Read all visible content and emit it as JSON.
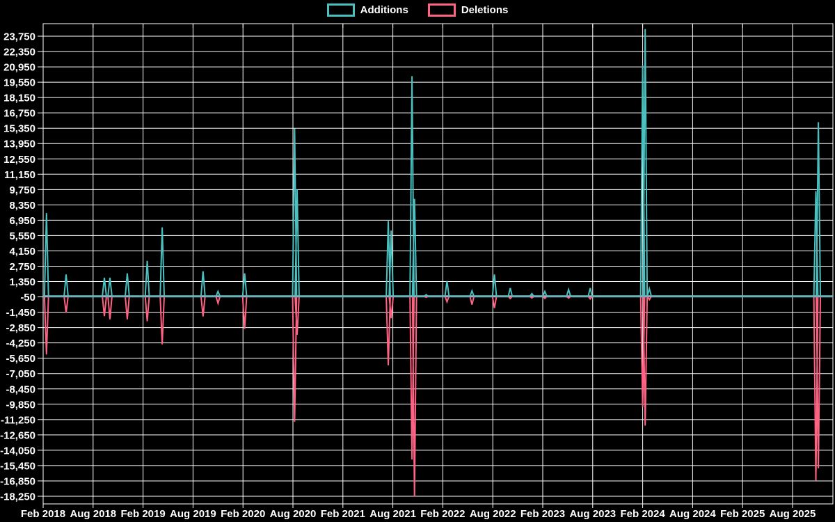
{
  "colors": {
    "background": "#000000",
    "grid": "#ffffff",
    "text": "#ffffff",
    "zero_line": "#9FB4C7",
    "additions": "#4BC0C0",
    "deletions": "#FF6384"
  },
  "legend": {
    "items": [
      {
        "label": "Additions",
        "color": "#4BC0C0"
      },
      {
        "label": "Deletions",
        "color": "#FF6384"
      }
    ]
  },
  "chart_data": {
    "type": "line",
    "title": "",
    "subtitle": "",
    "legend_position": "top",
    "grid": true,
    "background": "#000000",
    "x_axis": {
      "start": "Feb 2018",
      "end": "Aug 2025",
      "granularity": "weekly points, gridline every 6 months",
      "tick_labels": [
        "Feb 2018",
        "Aug 2018",
        "Feb 2019",
        "Aug 2019",
        "Feb 2020",
        "Aug 2020",
        "Feb 2021",
        "Aug 2021",
        "Feb 2022",
        "Aug 2022",
        "Feb 2023",
        "Aug 2023",
        "Feb 2024",
        "Aug 2024",
        "Feb 2025",
        "Aug 2025"
      ]
    },
    "y_axis": {
      "min": -18250,
      "max": 23750,
      "step": 1400,
      "tick_labels": [
        "23,750",
        "22,350",
        "20,950",
        "19,550",
        "18,150",
        "16,750",
        "15,350",
        "13,950",
        "12,550",
        "11,150",
        "9,750",
        "8,350",
        "6,950",
        "5,550",
        "4,150",
        "2,750",
        "1,350",
        "-50",
        "-1,450",
        "-2,850",
        "-4,250",
        "-5,650",
        "-7,050",
        "-8,450",
        "-9,850",
        "-11,250",
        "-12,650",
        "-14,050",
        "-15,450",
        "-16,850",
        "-18,250"
      ]
    },
    "baseline_value": 0,
    "series_names": [
      "Additions",
      "Deletions"
    ],
    "points_note": "spike events; all other weeks are 0 for both series; t = months after Feb 2018",
    "points": [
      {
        "date": "2018-02",
        "t": 0.4,
        "additions": 7600,
        "deletions": -5300
      },
      {
        "date": "2018-04",
        "t": 2.76,
        "additions": 2000,
        "deletions": -1500
      },
      {
        "date": "2018-09",
        "t": 7.35,
        "additions": 1700,
        "deletions": -1800
      },
      {
        "date": "2018-10",
        "t": 8.02,
        "additions": 1700,
        "deletions": -2100
      },
      {
        "date": "2018-12",
        "t": 10.1,
        "additions": 2100,
        "deletions": -2100
      },
      {
        "date": "2019-02",
        "t": 12.5,
        "additions": 3240,
        "deletions": -2270
      },
      {
        "date": "2019-04",
        "t": 14.3,
        "additions": 6300,
        "deletions": -4380
      },
      {
        "date": "2019-09",
        "t": 19.2,
        "additions": 2290,
        "deletions": -1840
      },
      {
        "date": "2019-11",
        "t": 21.0,
        "additions": 450,
        "deletions": -630
      },
      {
        "date": "2020-02",
        "t": 24.2,
        "additions": 2100,
        "deletions": -2960
      },
      {
        "date": "2020-08",
        "t": 30.2,
        "additions": 15330,
        "deletions": -11440
      },
      {
        "date": "2020-08",
        "t": 30.5,
        "additions": 9750,
        "deletions": -3500
      },
      {
        "date": "2021-07",
        "t": 41.45,
        "additions": 6880,
        "deletions": -6290
      },
      {
        "date": "2021-08",
        "t": 41.8,
        "additions": 6000,
        "deletions": -2000
      },
      {
        "date": "2021-10",
        "t": 44.3,
        "additions": 20100,
        "deletions": -14900
      },
      {
        "date": "2021-11",
        "t": 44.6,
        "additions": 8900,
        "deletions": -18300
      },
      {
        "date": "2021-12",
        "t": 46.0,
        "additions": 150,
        "deletions": -80
      },
      {
        "date": "2022-02",
        "t": 48.5,
        "additions": 1400,
        "deletions": -500
      },
      {
        "date": "2022-05",
        "t": 51.5,
        "additions": 500,
        "deletions": -760
      },
      {
        "date": "2022-08",
        "t": 54.2,
        "additions": 2000,
        "deletions": -1070
      },
      {
        "date": "2022-10",
        "t": 56.1,
        "additions": 760,
        "deletions": -200
      },
      {
        "date": "2022-12",
        "t": 58.7,
        "additions": 250,
        "deletions": -150
      },
      {
        "date": "2023-02",
        "t": 60.25,
        "additions": 440,
        "deletions": -190
      },
      {
        "date": "2023-05",
        "t": 63.1,
        "additions": 630,
        "deletions": -160
      },
      {
        "date": "2023-07",
        "t": 65.7,
        "additions": 760,
        "deletions": -230
      },
      {
        "date": "2024-01",
        "t": 72.0,
        "additions": 21100,
        "deletions": -10100
      },
      {
        "date": "2024-02",
        "t": 72.3,
        "additions": 24400,
        "deletions": -11800
      },
      {
        "date": "2024-02",
        "t": 72.8,
        "additions": 700,
        "deletions": -300
      },
      {
        "date": "2025-10",
        "t": 92.8,
        "additions": 9600,
        "deletions": -16800
      },
      {
        "date": "2025-11",
        "t": 93.1,
        "additions": 15900,
        "deletions": -15700
      }
    ]
  }
}
